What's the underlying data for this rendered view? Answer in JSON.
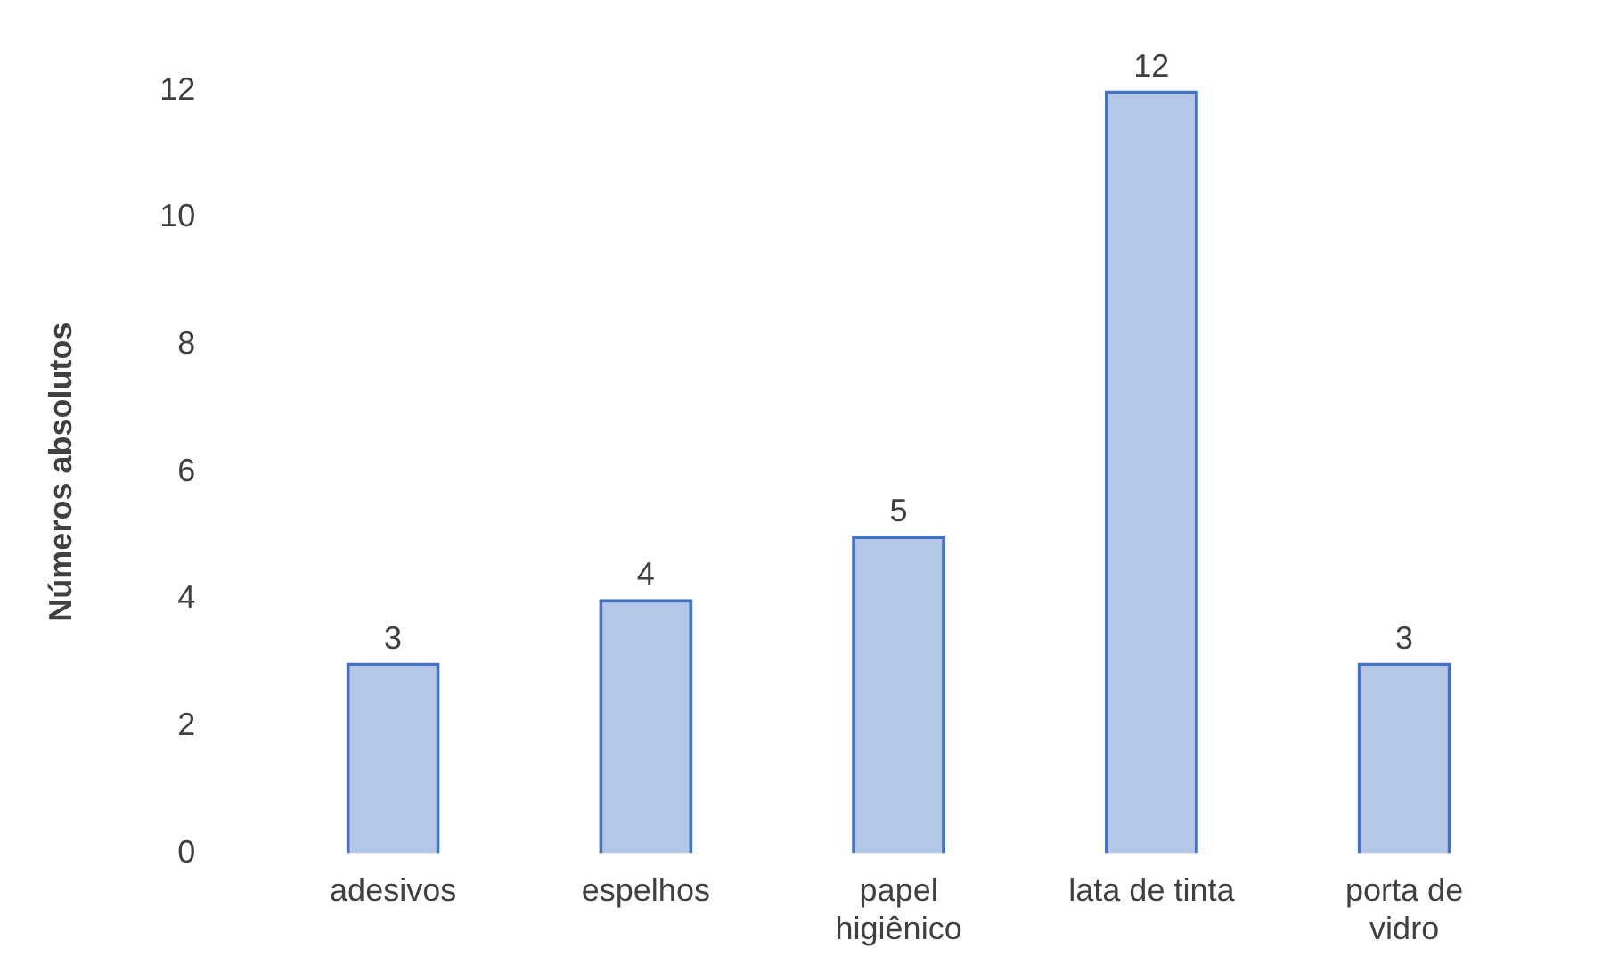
{
  "chart_data": {
    "type": "bar",
    "ylabel": "Números absolutos",
    "categories": [
      "adesivos",
      "espelhos",
      "papel higiênico",
      "lata de tinta",
      "porta de vidro"
    ],
    "values": [
      3,
      4,
      5,
      12,
      3
    ],
    "color": "#4472c4",
    "ylim": [
      0,
      12
    ],
    "yticks": [
      0,
      2,
      4,
      6,
      8,
      10,
      12
    ],
    "grid": false,
    "data_labels": true
  }
}
